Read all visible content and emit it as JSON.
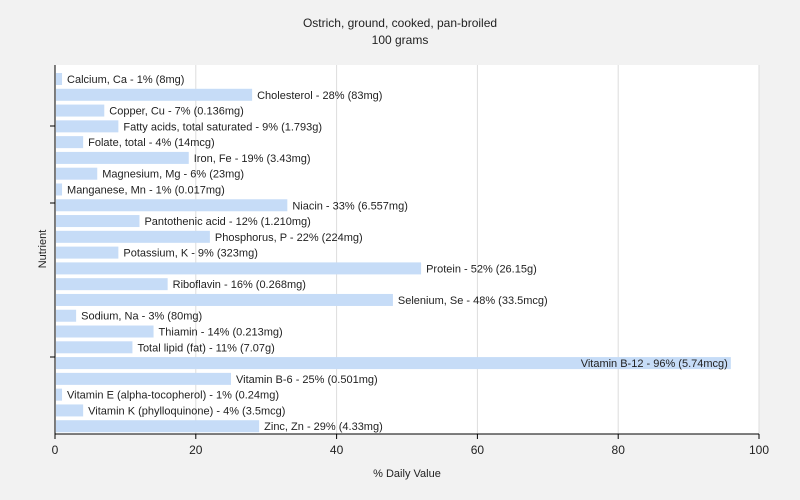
{
  "chart_data": {
    "type": "bar",
    "orientation": "horizontal",
    "title": "Ostrich, ground, cooked, pan-broiled",
    "subtitle": "100 grams",
    "xlabel": "% Daily Value",
    "ylabel": "Nutrient",
    "xlim": [
      0,
      100
    ],
    "xticks": [
      0,
      20,
      40,
      60,
      80,
      100
    ],
    "grid": "vertical",
    "bar_color": "#c6dcf7",
    "categories": [
      "Calcium, Ca",
      "Cholesterol",
      "Copper, Cu",
      "Fatty acids, total saturated",
      "Folate, total",
      "Iron, Fe",
      "Magnesium, Mg",
      "Manganese, Mn",
      "Niacin",
      "Pantothenic acid",
      "Phosphorus, P",
      "Potassium, K",
      "Protein",
      "Riboflavin",
      "Selenium, Se",
      "Sodium, Na",
      "Thiamin",
      "Total lipid (fat)",
      "Vitamin B-12",
      "Vitamin B-6",
      "Vitamin E (alpha-tocopherol)",
      "Vitamin K (phylloquinone)",
      "Zinc, Zn"
    ],
    "values": [
      1,
      28,
      7,
      9,
      4,
      19,
      6,
      1,
      33,
      12,
      22,
      9,
      52,
      16,
      48,
      3,
      14,
      11,
      96,
      25,
      1,
      4,
      29
    ],
    "labels": [
      "Calcium, Ca - 1% (8mg)",
      "Cholesterol - 28% (83mg)",
      "Copper, Cu - 7% (0.136mg)",
      "Fatty acids, total saturated - 9% (1.793g)",
      "Folate, total - 4% (14mcg)",
      "Iron, Fe - 19% (3.43mg)",
      "Magnesium, Mg - 6% (23mg)",
      "Manganese, Mn - 1% (0.017mg)",
      "Niacin - 33% (6.557mg)",
      "Pantothenic acid - 12% (1.210mg)",
      "Phosphorus, P - 22% (224mg)",
      "Potassium, K - 9% (323mg)",
      "Protein - 52% (26.15g)",
      "Riboflavin - 16% (0.268mg)",
      "Selenium, Se - 48% (33.5mcg)",
      "Sodium, Na - 3% (80mg)",
      "Thiamin - 14% (0.213mg)",
      "Total lipid (fat) - 11% (7.07g)",
      "Vitamin B-12 - 96% (5.74mcg)",
      "Vitamin B-6 - 25% (0.501mg)",
      "Vitamin E (alpha-tocopherol) - 1% (0.24mg)",
      "Vitamin K (phylloquinone) - 4% (3.5mcg)",
      "Zinc, Zn - 29% (4.33mg)"
    ]
  }
}
